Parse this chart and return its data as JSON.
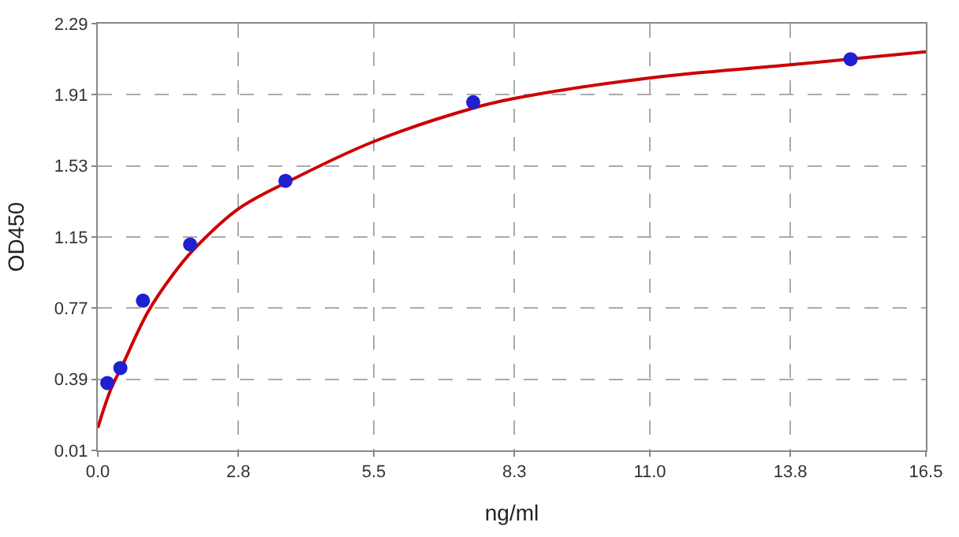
{
  "chart_data": {
    "type": "scatter",
    "xlabel": "ng/ml",
    "ylabel": "OD450",
    "xlim": [
      0.0,
      16.5
    ],
    "xticks": [
      {
        "value": 0.0,
        "label": "0.0"
      },
      2.8,
      5.5,
      8.3,
      {
        "value": 11.0,
        "label": "11.0"
      },
      13.8,
      16.5
    ],
    "ylim": [
      0.01,
      2.29
    ],
    "yticks": [
      0.01,
      0.39,
      0.77,
      1.15,
      1.53,
      1.91,
      2.29
    ],
    "grid": true,
    "series": [
      {
        "type": "line",
        "color": "#cc0000",
        "marker": "none",
        "line_style": "solid",
        "x": [
          0.0,
          0.25,
          0.5,
          1.0,
          1.5,
          1.9,
          2.8,
          3.75,
          5.5,
          7.5,
          8.3,
          11.0,
          13.8,
          16.5
        ],
        "values": [
          0.13,
          0.33,
          0.47,
          0.75,
          0.95,
          1.08,
          1.3,
          1.44,
          1.66,
          1.84,
          1.89,
          2.0,
          2.07,
          2.14
        ]
      },
      {
        "color": "#2020d0",
        "marker": "circle",
        "x": [
          0.19,
          0.45,
          0.9,
          1.84,
          3.74,
          7.48,
          15.0
        ],
        "values": [
          0.37,
          0.45,
          0.81,
          1.11,
          1.45,
          1.87,
          2.1
        ]
      }
    ]
  }
}
